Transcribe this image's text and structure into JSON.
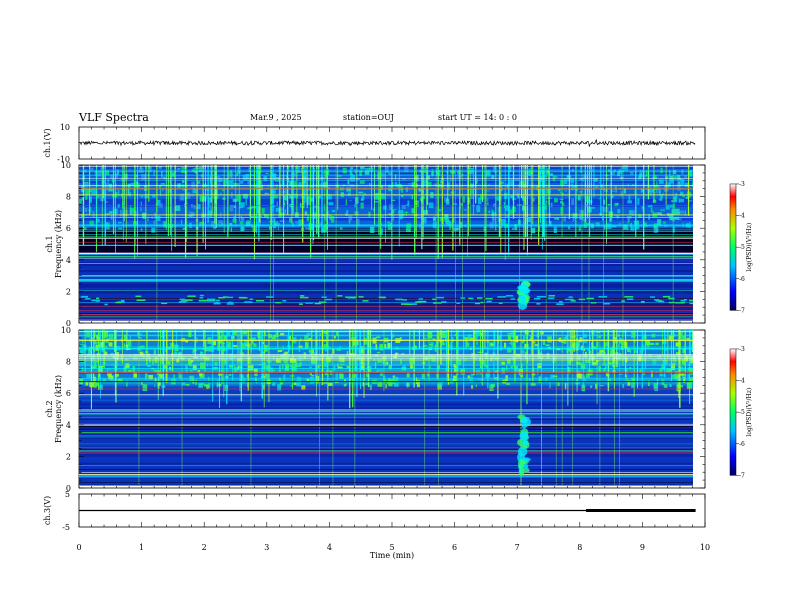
{
  "header": {
    "title": "VLF Spectra",
    "date": "Mar.9 , 2025",
    "station": "station=OUJ",
    "start": "start UT = 14: 0 : 0"
  },
  "chart_data": [
    {
      "type": "line",
      "panel": "ch1-waveform",
      "ylabel": "ch.1(V)",
      "ylim": [
        -10,
        10
      ],
      "yticks": [
        "10",
        "-10"
      ],
      "xlim": [
        0,
        10
      ],
      "mean_level": 0,
      "amplitude": 1.2,
      "color": "#000000"
    },
    {
      "type": "heatmap",
      "panel": "ch1-spectrogram",
      "ylabel": "ch.1\nFrequency (kHz)",
      "ylim": [
        0,
        10
      ],
      "yticks": [
        "0",
        "2",
        "4",
        "6",
        "8",
        "10"
      ],
      "xlim": [
        0,
        9.85
      ],
      "colorbar": {
        "label": "log(PSD)(V²/Hz)",
        "range": [
          -7,
          -3
        ],
        "ticks": [
          "-3",
          "-4",
          "-5",
          "-6",
          "-7"
        ]
      },
      "features": {
        "dark_band_khz": [
          4.5,
          6.0
        ],
        "active_band_khz": [
          6.0,
          10.0
        ],
        "emission_band_khz": [
          1.2,
          1.8
        ],
        "burst_time_min": 7.1
      }
    },
    {
      "type": "heatmap",
      "panel": "ch2-spectrogram",
      "ylabel": "ch.2\nFrequency (kHz)",
      "ylim": [
        0,
        10
      ],
      "yticks": [
        "0",
        "2",
        "4",
        "6",
        "8",
        "10"
      ],
      "xlim": [
        0,
        9.85
      ],
      "colorbar": {
        "label": "log(PSD)(V²/Hz)",
        "range": [
          -7,
          -3
        ],
        "ticks": [
          "-3",
          "-4",
          "-5",
          "-6",
          "-7"
        ]
      },
      "features": {
        "active_band_khz": [
          6.5,
          10.0
        ],
        "hiss_band_khz": [
          5.5,
          6.8
        ],
        "burst_time_min": 7.1
      }
    },
    {
      "type": "line",
      "panel": "ch3-level",
      "ylabel": "ch.3(V)",
      "ylim": [
        -5,
        5
      ],
      "yticks": [
        "5",
        "-5"
      ],
      "xlim": [
        0,
        10
      ],
      "segments": [
        {
          "x": [
            0,
            8.1
          ],
          "y": 0,
          "width": "thin"
        },
        {
          "x": [
            8.1,
            9.85
          ],
          "y": 0,
          "width": "thick"
        }
      ]
    }
  ],
  "xaxis": {
    "label": "Time (min)",
    "ticks": [
      "0",
      "1",
      "2",
      "3",
      "4",
      "5",
      "6",
      "7",
      "8",
      "9",
      "10"
    ]
  }
}
